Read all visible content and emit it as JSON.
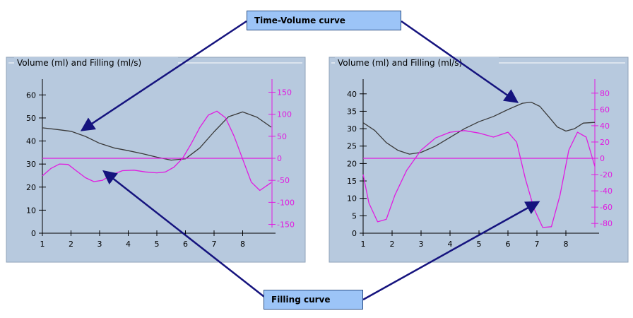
{
  "callouts": {
    "time_volume": "Time-Volume curve",
    "filling": "Filling curve"
  },
  "colors": {
    "panel_bg": "#b7c9de",
    "volume_curve": "#3a3a3a",
    "filling_curve": "#e01ce0",
    "arrow": "#15137e",
    "callout_bg": "#9cc4f7",
    "axis": "#000000"
  },
  "chart_data": [
    {
      "type": "line",
      "title": "Volume (ml) and Filling (ml/s)",
      "xlim": [
        1,
        9
      ],
      "x_ticks": [
        1,
        2,
        3,
        4,
        5,
        6,
        7,
        8
      ],
      "ylim_left": [
        0,
        65
      ],
      "y_ticks_left": [
        0,
        10,
        20,
        30,
        40,
        50,
        60
      ],
      "ylim_right": [
        -170,
        170
      ],
      "y_ticks_right": [
        -150,
        -100,
        -50,
        0,
        50,
        100,
        150
      ],
      "series": [
        {
          "axis": "left",
          "color": "#3a3a3a",
          "x": [
            1,
            1.5,
            2,
            2.5,
            3,
            3.5,
            4,
            4.5,
            5,
            5.5,
            6,
            6.5,
            7,
            7.5,
            8,
            8.5,
            9
          ],
          "y": [
            45.7,
            45,
            44.2,
            42,
            39,
            37,
            35.8,
            34.5,
            33,
            31.7,
            32.3,
            37,
            44,
            50.5,
            52.6,
            50.3,
            46
          ]
        },
        {
          "axis": "right",
          "color": "#e01ce0",
          "x": [
            1,
            1.3,
            1.6,
            1.9,
            2.2,
            2.5,
            2.8,
            3.1,
            3.4,
            3.8,
            4.2,
            4.6,
            5,
            5.3,
            5.6,
            5.9,
            6.2,
            6.5,
            6.8,
            7.1,
            7.4,
            7.7,
            8,
            8.3,
            8.6,
            9
          ],
          "y": [
            -40,
            -23,
            -13,
            -14,
            -29,
            -44,
            -53,
            -50,
            -38,
            -28,
            -27,
            -31,
            -33,
            -31,
            -20,
            0,
            33,
            70,
            98,
            107,
            92,
            50,
            -2,
            -54,
            -73,
            -55
          ]
        },
        {
          "axis": "right",
          "color": "#e01ce0",
          "x": [
            1,
            9
          ],
          "y": [
            0,
            0
          ]
        }
      ]
    },
    {
      "type": "line",
      "title": "Volume (ml) and Filling (ml/s)",
      "xlim": [
        1,
        9
      ],
      "x_ticks": [
        1,
        2,
        3,
        4,
        5,
        6,
        7,
        8
      ],
      "ylim_left": [
        0,
        43
      ],
      "y_ticks_left": [
        0,
        5,
        10,
        15,
        20,
        25,
        30,
        35,
        40
      ],
      "ylim_right": [
        -92,
        92
      ],
      "y_ticks_right": [
        -80,
        -60,
        -40,
        -20,
        0,
        20,
        40,
        60,
        80
      ],
      "series": [
        {
          "axis": "left",
          "color": "#3a3a3a",
          "x": [
            1,
            1.4,
            1.8,
            2.2,
            2.6,
            3,
            3.5,
            4,
            4.5,
            5,
            5.5,
            6,
            6.5,
            6.8,
            7.1,
            7.4,
            7.7,
            8,
            8.3,
            8.6,
            9
          ],
          "y": [
            31.7,
            29.5,
            26,
            23.8,
            22.7,
            23.2,
            25,
            27.5,
            30,
            32,
            33.5,
            35.5,
            37.3,
            37.6,
            36.4,
            33.5,
            30.5,
            29.3,
            30,
            31.6,
            31.8
          ]
        },
        {
          "axis": "right",
          "color": "#e01ce0",
          "x": [
            1,
            1.2,
            1.5,
            1.8,
            2.1,
            2.5,
            3,
            3.5,
            4,
            4.5,
            5,
            5.5,
            6,
            6.3,
            6.6,
            6.9,
            7.2,
            7.5,
            7.8,
            8.1,
            8.4,
            8.7,
            9
          ],
          "y": [
            -20,
            -55,
            -78,
            -75,
            -45,
            -15,
            10,
            25,
            32,
            34,
            31,
            26,
            32,
            20,
            -25,
            -62,
            -85,
            -84,
            -45,
            10,
            32,
            26,
            -10
          ]
        },
        {
          "axis": "right",
          "color": "#e01ce0",
          "x": [
            1,
            9
          ],
          "y": [
            0,
            0
          ]
        }
      ]
    }
  ]
}
